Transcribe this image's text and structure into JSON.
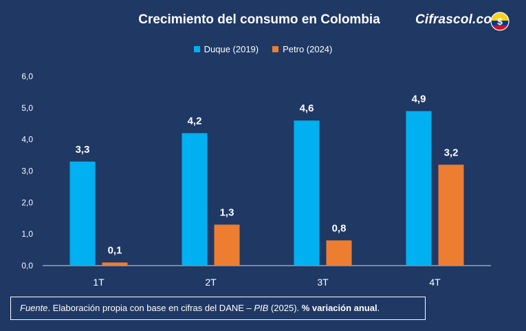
{
  "header": {
    "title": "Crecimiento del consumo en Colombia",
    "brand": "Cifrascol.com"
  },
  "colors": {
    "background": "#1f3864",
    "duque": "#00b0f0",
    "petro": "#ed7d31",
    "text": "#ffffff"
  },
  "chart_data": {
    "type": "bar",
    "title": "Crecimiento del consumo en Colombia",
    "categories": [
      "1T",
      "2T",
      "3T",
      "4T"
    ],
    "series": [
      {
        "name": "Duque (2019)",
        "values": [
          3.3,
          4.2,
          4.6,
          4.9
        ],
        "labels": [
          "3,3",
          "4,2",
          "4,6",
          "4,9"
        ]
      },
      {
        "name": "Petro (2024)",
        "values": [
          0.1,
          1.3,
          0.8,
          3.2
        ],
        "labels": [
          "0,1",
          "1,3",
          "0,8",
          "3,2"
        ]
      }
    ],
    "ylim": [
      0,
      6
    ],
    "yticks": [
      0,
      1,
      2,
      3,
      4,
      5,
      6
    ],
    "ytick_labels": [
      "0,0",
      "1,0",
      "2,0",
      "3,0",
      "4,0",
      "5,0",
      "6,0"
    ],
    "xlabel": "",
    "ylabel": "",
    "grid": false,
    "legend_position": "top-center"
  },
  "source": {
    "fuente_label": "Fuente",
    "text_1": ". Elaboración propia con base en cifras del DANE – ",
    "pib": "PIB",
    "text_2": " (2025). ",
    "variation": "% variación anual",
    "end": "."
  }
}
